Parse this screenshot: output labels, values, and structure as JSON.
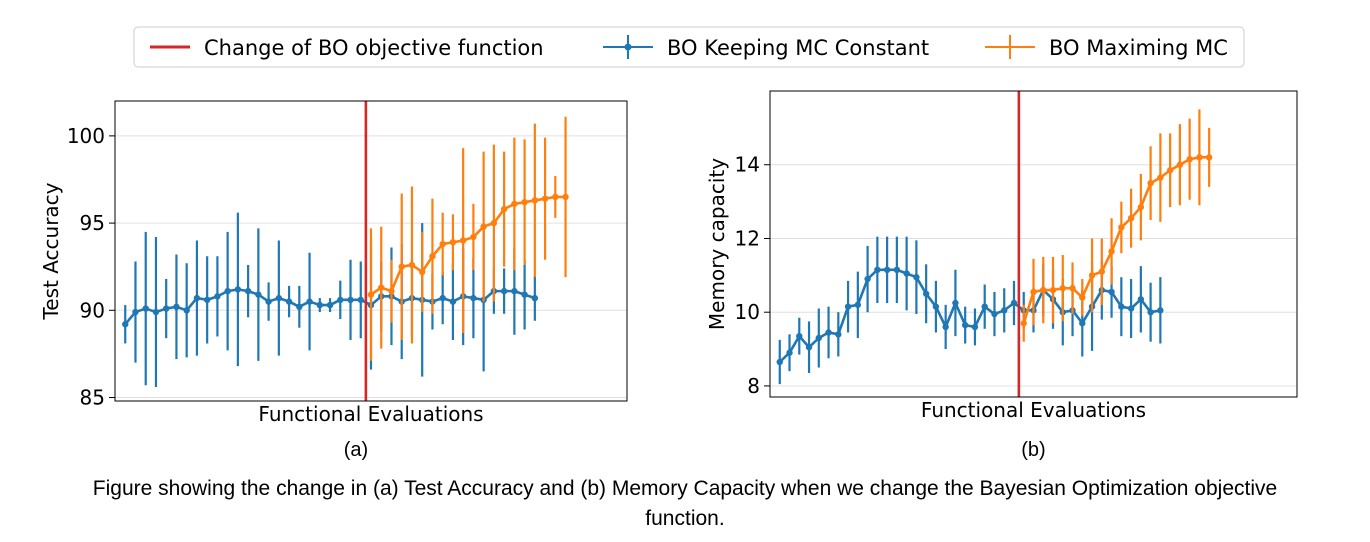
{
  "legend": {
    "items": [
      {
        "label": "Change of BO objective function",
        "color": "#d62728",
        "kind": "line"
      },
      {
        "label": "BO Keeping MC Constant",
        "color": "#1f77b4",
        "kind": "errorbar"
      },
      {
        "label": "BO Maximing MC",
        "color": "#ff7f0e",
        "kind": "errorbar"
      }
    ]
  },
  "caption": {
    "line1": "Figure showing the change in (a) Test Accuracy and (b) Memory Capacity when we change the Bayesian Optimization objective",
    "line2": "function."
  },
  "chart_data": [
    {
      "type": "line",
      "panel_label": "(a)",
      "xlabel": "Functional Evaluations",
      "ylabel": "Test Accuracy",
      "ylim": [
        84.8,
        102
      ],
      "xlim": [
        -1,
        49
      ],
      "yticks": [
        85,
        90,
        95,
        100
      ],
      "grid": true,
      "change_x": 23.5,
      "series": [
        {
          "name": "BO Keeping MC Constant",
          "color": "#1f77b4",
          "x_start": 0,
          "values": [
            89.2,
            89.9,
            90.1,
            89.9,
            90.1,
            90.2,
            90.0,
            90.7,
            90.6,
            90.8,
            91.1,
            91.2,
            91.1,
            90.9,
            90.5,
            90.7,
            90.5,
            90.2,
            90.5,
            90.3,
            90.3,
            90.6,
            90.6,
            90.6,
            90.3,
            90.8,
            90.8,
            90.5,
            90.7,
            90.6,
            90.5,
            90.7,
            90.5,
            90.8,
            90.7,
            90.6,
            91.1,
            91.1,
            91.1,
            90.9,
            90.7
          ],
          "err": [
            1.1,
            2.9,
            4.4,
            4.3,
            1.7,
            3.0,
            2.7,
            3.3,
            2.5,
            2.3,
            3.4,
            4.4,
            1.5,
            3.8,
            1.1,
            3.3,
            0.9,
            1.2,
            2.8,
            0.4,
            0.4,
            1.1,
            2.3,
            2.2,
            3.7,
            2.0,
            2.8,
            3.3,
            2.2,
            4.4,
            1.6,
            1.5,
            2.2,
            2.8,
            2.3,
            4.1,
            1.3,
            1.3,
            2.5,
            2.0,
            1.3
          ]
        },
        {
          "name": "BO Maximing MC",
          "color": "#ff7f0e",
          "x_start": 24,
          "values": [
            90.9,
            91.3,
            91.1,
            92.5,
            92.6,
            92.2,
            93.1,
            93.8,
            93.9,
            94.0,
            94.2,
            94.8,
            95.0,
            95.8,
            96.1,
            96.2,
            96.3,
            96.4,
            96.5,
            96.5
          ],
          "err": [
            3.8,
            3.5,
            1.8,
            4.2,
            4.5,
            2.3,
            3.3,
            1.8,
            1.6,
            5.3,
            1.9,
            4.3,
            4.5,
            3.3,
            3.8,
            3.6,
            4.4,
            3.5,
            1.2,
            4.6
          ]
        }
      ]
    },
    {
      "type": "line",
      "panel_label": "(b)",
      "xlabel": "Functional Evaluations",
      "ylabel": "Memory capacity",
      "ylim": [
        7.7,
        16.0
      ],
      "xlim": [
        -1,
        53
      ],
      "yticks": [
        8,
        10,
        12,
        14
      ],
      "grid": true,
      "change_x": 24.5,
      "series": [
        {
          "name": "BO Keeping MC Constant",
          "color": "#1f77b4",
          "x_start": 0,
          "values": [
            8.65,
            8.9,
            9.35,
            9.05,
            9.3,
            9.45,
            9.4,
            10.15,
            10.2,
            10.9,
            11.15,
            11.15,
            11.15,
            11.05,
            10.95,
            10.5,
            10.15,
            9.6,
            10.25,
            9.65,
            9.6,
            10.15,
            9.95,
            10.05,
            10.25,
            10.05,
            10.05,
            10.6,
            10.35,
            10.0,
            10.05,
            9.7,
            10.15,
            10.6,
            10.55,
            10.15,
            10.1,
            10.35,
            10.0,
            10.05
          ],
          "err": [
            0.6,
            0.5,
            0.5,
            0.7,
            0.8,
            0.7,
            0.6,
            0.7,
            0.9,
            0.9,
            0.9,
            0.9,
            0.9,
            1.0,
            1.0,
            0.8,
            0.7,
            0.6,
            0.9,
            0.5,
            0.5,
            0.6,
            0.6,
            0.6,
            0.6,
            0.5,
            0.6,
            0.7,
            0.8,
            0.9,
            0.7,
            0.9,
            1.2,
            0.8,
            0.7,
            0.8,
            0.8,
            0.9,
            0.8,
            0.9
          ]
        },
        {
          "name": "BO Maximing MC",
          "color": "#ff7f0e",
          "x_start": 25,
          "values": [
            9.7,
            10.55,
            10.6,
            10.6,
            10.65,
            10.65,
            10.4,
            11.0,
            11.1,
            11.65,
            12.3,
            12.55,
            12.85,
            13.5,
            13.65,
            13.85,
            14.0,
            14.15,
            14.2,
            14.2
          ],
          "err": [
            0.5,
            0.9,
            0.9,
            0.9,
            0.9,
            0.7,
            0.5,
            1.0,
            0.9,
            0.9,
            0.7,
            0.8,
            0.9,
            1.0,
            1.2,
            1.0,
            1.1,
            1.1,
            1.3,
            0.8
          ]
        }
      ]
    }
  ]
}
